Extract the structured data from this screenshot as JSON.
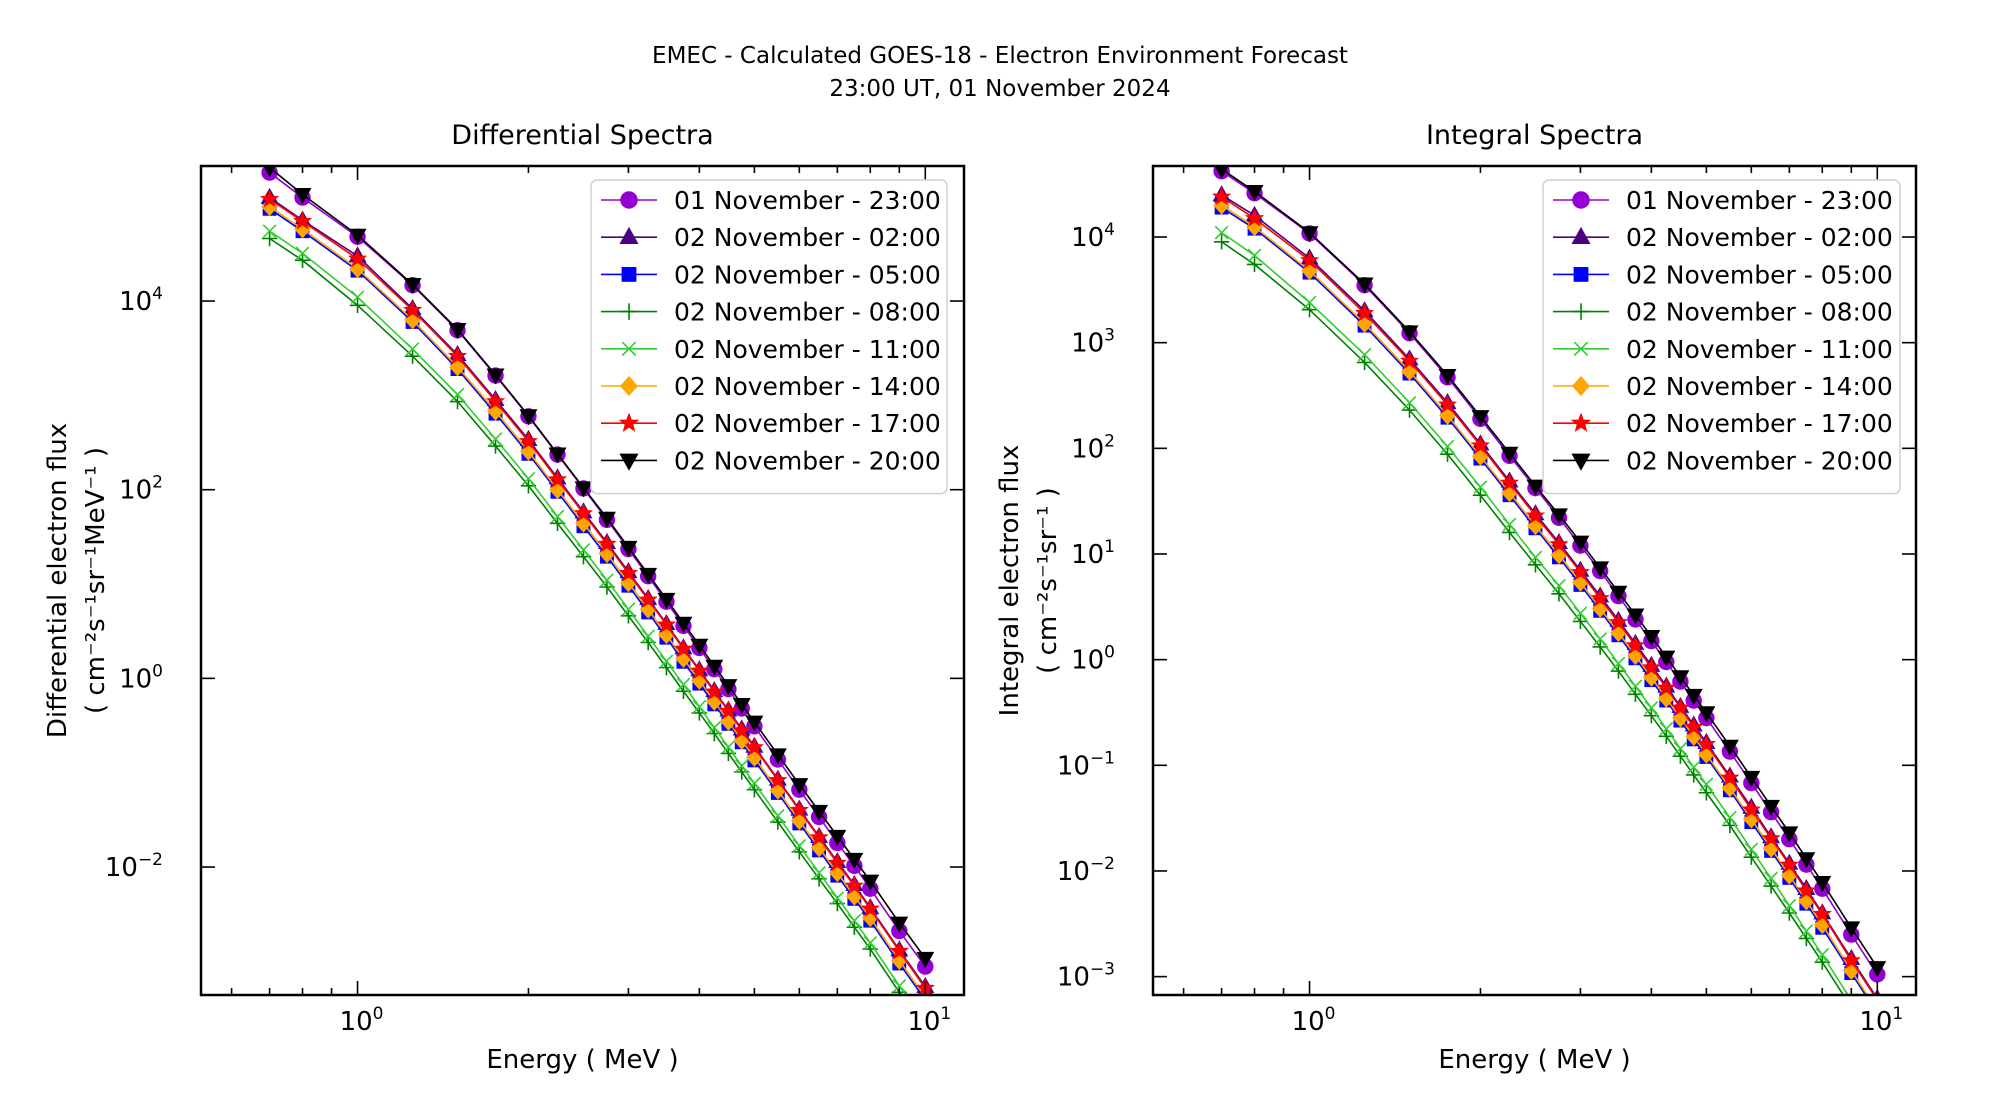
{
  "title": {
    "line1": "EMEC - Calculated GOES-18 - Electron Environment Forecast",
    "line2": "23:00 UT, 01 November 2024"
  },
  "chart_data": [
    {
      "type": "line",
      "title": "Differential Spectra",
      "xlabel": "Energy ( MeV )",
      "ylabel": "Differential electron flux",
      "ylabel_units": "( cm⁻²s⁻¹sr⁻¹MeV⁻¹ )",
      "xscale": "log",
      "yscale": "log",
      "xlim": [
        0.53,
        11.7
      ],
      "ylim": [
        0.00044,
        270000
      ],
      "xticks": [
        {
          "value": 1,
          "label": "10",
          "exp": "0"
        },
        {
          "value": 10,
          "label": "10",
          "exp": "1"
        }
      ],
      "yticks": [
        {
          "value": 0.01,
          "label": "10",
          "exp": "−2"
        },
        {
          "value": 1,
          "label": "10",
          "exp": "0"
        },
        {
          "value": 100,
          "label": "10",
          "exp": "2"
        },
        {
          "value": 10000,
          "label": "10",
          "exp": "4"
        }
      ],
      "legend_position": "top-right",
      "energies": [
        0.7,
        0.8,
        1.0,
        1.25,
        1.5,
        1.75,
        2.0,
        2.25,
        2.5,
        2.75,
        3.0,
        3.25,
        3.5,
        3.75,
        4.0,
        4.25,
        4.5,
        4.75,
        5.0,
        5.5,
        6.0,
        6.5,
        7.0,
        7.5,
        8.0,
        9.0,
        10.0
      ],
      "series": [
        {
          "name": "01 November - 23:00",
          "color": "#9400D3",
          "marker": "circle",
          "values": [
            230000,
            125000,
            48000,
            14700,
            4900,
            1620,
            600,
            236,
            103,
            48,
            23.5,
            12.1,
            6.5,
            3.6,
            2.1,
            1.25,
            0.77,
            0.48,
            0.31,
            0.138,
            0.066,
            0.034,
            0.018,
            0.0103,
            0.0059,
            0.0021,
            0.00088
          ]
        },
        {
          "name": "02 November - 02:00",
          "color": "#4B0082",
          "marker": "triangle-up",
          "values": [
            125000,
            72000,
            30000,
            8300,
            2700,
            900,
            340,
            133,
            58,
            27.5,
            13.5,
            7.0,
            3.8,
            2.1,
            1.23,
            0.74,
            0.46,
            0.29,
            0.19,
            0.085,
            0.041,
            0.021,
            0.0114,
            0.0065,
            0.0037,
            0.00132,
            0.00054
          ]
        },
        {
          "name": "02 November - 05:00",
          "color": "#0000FF",
          "marker": "square",
          "values": [
            95000,
            55000,
            21000,
            6000,
            1900,
            640,
            240,
            95,
            41,
            19.5,
            9.6,
            5.0,
            2.7,
            1.5,
            0.88,
            0.53,
            0.33,
            0.21,
            0.135,
            0.061,
            0.029,
            0.015,
            0.0081,
            0.0046,
            0.0027,
            0.00095,
            0.00039
          ]
        },
        {
          "name": "02 November - 08:00",
          "color": "#008000",
          "marker": "plus",
          "values": [
            46000,
            27000,
            9000,
            2600,
            860,
            290,
            110,
            44,
            19.5,
            9.3,
            4.6,
            2.4,
            1.3,
            0.73,
            0.43,
            0.26,
            0.16,
            0.102,
            0.066,
            0.03,
            0.0145,
            0.0075,
            0.0041,
            0.0023,
            0.00135,
            0.00047,
            0.000195
          ]
        },
        {
          "name": "02 November - 11:00",
          "color": "#32CD32",
          "marker": "x",
          "values": [
            55000,
            32000,
            11000,
            3100,
            1020,
            345,
            131,
            52,
            23,
            11,
            5.4,
            2.8,
            1.52,
            0.86,
            0.5,
            0.3,
            0.187,
            0.118,
            0.077,
            0.035,
            0.0168,
            0.0087,
            0.0047,
            0.0027,
            0.00157,
            0.00055,
            0.00023
          ]
        },
        {
          "name": "02 November - 14:00",
          "color": "#FFA500",
          "marker": "diamond",
          "values": [
            100000,
            58000,
            22000,
            6300,
            2000,
            680,
            255,
            100,
            44,
            21,
            10.3,
            5.4,
            2.9,
            1.62,
            0.95,
            0.57,
            0.35,
            0.22,
            0.145,
            0.065,
            0.031,
            0.016,
            0.0087,
            0.0049,
            0.0029,
            0.00102,
            0.00042
          ]
        },
        {
          "name": "02 November - 17:00",
          "color": "#FF0000",
          "marker": "star",
          "values": [
            120000,
            70000,
            28000,
            8000,
            2600,
            860,
            325,
            128,
            56,
            26.5,
            13,
            6.8,
            3.7,
            2.05,
            1.2,
            0.72,
            0.45,
            0.28,
            0.185,
            0.083,
            0.04,
            0.0205,
            0.011,
            0.0063,
            0.0036,
            0.00128,
            0.00052
          ]
        },
        {
          "name": "02 November - 20:00",
          "color": "#000000",
          "marker": "triangle-down",
          "values": [
            260000,
            135000,
            50000,
            15000,
            5000,
            1650,
            610,
            240,
            105,
            50,
            24.5,
            12.7,
            6.9,
            3.85,
            2.25,
            1.35,
            0.84,
            0.53,
            0.345,
            0.155,
            0.075,
            0.039,
            0.0212,
            0.0121,
            0.0071,
            0.00255,
            0.00108
          ]
        }
      ]
    },
    {
      "type": "line",
      "title": "Integral Spectra",
      "xlabel": "Energy ( MeV )",
      "ylabel": "Integral electron flux",
      "ylabel_units": "( cm⁻²s⁻¹sr⁻¹ )",
      "xscale": "log",
      "yscale": "log",
      "xlim": [
        0.53,
        11.7
      ],
      "ylim": [
        0.00067,
        47000
      ],
      "xticks": [
        {
          "value": 1,
          "label": "10",
          "exp": "0"
        },
        {
          "value": 10,
          "label": "10",
          "exp": "1"
        }
      ],
      "yticks": [
        {
          "value": 0.001,
          "label": "10",
          "exp": "−3"
        },
        {
          "value": 0.01,
          "label": "10",
          "exp": "−2"
        },
        {
          "value": 0.1,
          "label": "10",
          "exp": "−1"
        },
        {
          "value": 1,
          "label": "10",
          "exp": "0"
        },
        {
          "value": 10,
          "label": "10",
          "exp": "1"
        },
        {
          "value": 100,
          "label": "10",
          "exp": "2"
        },
        {
          "value": 1000,
          "label": "10",
          "exp": "3"
        },
        {
          "value": 10000,
          "label": "10",
          "exp": "4"
        }
      ],
      "legend_position": "top-right",
      "energies": [
        0.7,
        0.8,
        1.0,
        1.25,
        1.5,
        1.75,
        2.0,
        2.25,
        2.5,
        2.75,
        3.0,
        3.25,
        3.5,
        3.75,
        4.0,
        4.25,
        4.5,
        4.75,
        5.0,
        5.5,
        6.0,
        6.5,
        7.0,
        7.5,
        8.0,
        9.0,
        10.0
      ],
      "series": [
        {
          "name": "01 November - 23:00",
          "color": "#9400D3",
          "marker": "circle",
          "values": [
            42000,
            26000,
            10800,
            3500,
            1230,
            470,
            190,
            85,
            42,
            22,
            12,
            6.9,
            4.0,
            2.4,
            1.5,
            0.95,
            0.62,
            0.41,
            0.28,
            0.135,
            0.068,
            0.036,
            0.02,
            0.0115,
            0.0068,
            0.0025,
            0.00105
          ]
        },
        {
          "name": "02 November - 02:00",
          "color": "#4B0082",
          "marker": "triangle-up",
          "values": [
            25000,
            16000,
            6300,
            2000,
            700,
            270,
            110,
            49,
            24,
            12.8,
            7.0,
            4.0,
            2.35,
            1.42,
            0.88,
            0.56,
            0.36,
            0.24,
            0.164,
            0.079,
            0.04,
            0.021,
            0.0118,
            0.0068,
            0.004,
            0.00148,
            0.00062
          ]
        },
        {
          "name": "02 November - 05:00",
          "color": "#0000FF",
          "marker": "square",
          "values": [
            19000,
            12000,
            4600,
            1450,
            510,
            195,
            80,
            36,
            17.5,
            9.3,
            5.1,
            2.9,
            1.7,
            1.03,
            0.64,
            0.41,
            0.265,
            0.176,
            0.12,
            0.058,
            0.029,
            0.0155,
            0.0086,
            0.0049,
            0.0029,
            0.00108,
            0.00045
          ]
        },
        {
          "name": "02 November - 08:00",
          "color": "#008000",
          "marker": "plus",
          "values": [
            9000,
            5500,
            2050,
            650,
            230,
            88,
            36,
            16,
            7.9,
            4.2,
            2.3,
            1.32,
            0.78,
            0.47,
            0.295,
            0.188,
            0.122,
            0.081,
            0.055,
            0.027,
            0.0135,
            0.0072,
            0.004,
            0.0023,
            0.00137,
            0.00051,
            0.00021
          ]
        },
        {
          "name": "02 November - 11:00",
          "color": "#32CD32",
          "marker": "x",
          "values": [
            11000,
            6700,
            2400,
            770,
            270,
            104,
            43,
            19,
            9.3,
            5.0,
            2.75,
            1.57,
            0.92,
            0.56,
            0.35,
            0.222,
            0.144,
            0.096,
            0.066,
            0.032,
            0.016,
            0.0085,
            0.0047,
            0.0027,
            0.00161,
            0.0006,
            0.00025
          ]
        },
        {
          "name": "02 November - 14:00",
          "color": "#FFA500",
          "marker": "diamond",
          "values": [
            20000,
            12500,
            4800,
            1520,
            535,
            205,
            84,
            38,
            18.5,
            9.8,
            5.4,
            3.05,
            1.8,
            1.09,
            0.68,
            0.43,
            0.28,
            0.187,
            0.127,
            0.061,
            0.031,
            0.0164,
            0.0091,
            0.0052,
            0.0031,
            0.00114,
            0.00048
          ]
        },
        {
          "name": "02 November - 17:00",
          "color": "#FF0000",
          "marker": "star",
          "values": [
            24000,
            15000,
            6000,
            1900,
            670,
            258,
            106,
            47,
            23,
            12.3,
            6.7,
            3.8,
            2.25,
            1.36,
            0.84,
            0.54,
            0.35,
            0.23,
            0.158,
            0.076,
            0.038,
            0.0203,
            0.0114,
            0.0065,
            0.0039,
            0.00142,
            0.0006
          ]
        },
        {
          "name": "02 November - 20:00",
          "color": "#000000",
          "marker": "triangle-down",
          "values": [
            44000,
            27000,
            11000,
            3600,
            1270,
            490,
            200,
            90,
            44,
            23.5,
            13,
            7.4,
            4.35,
            2.65,
            1.66,
            1.06,
            0.69,
            0.46,
            0.315,
            0.152,
            0.077,
            0.041,
            0.023,
            0.0131,
            0.0078,
            0.0029,
            0.00122
          ]
        }
      ]
    }
  ]
}
